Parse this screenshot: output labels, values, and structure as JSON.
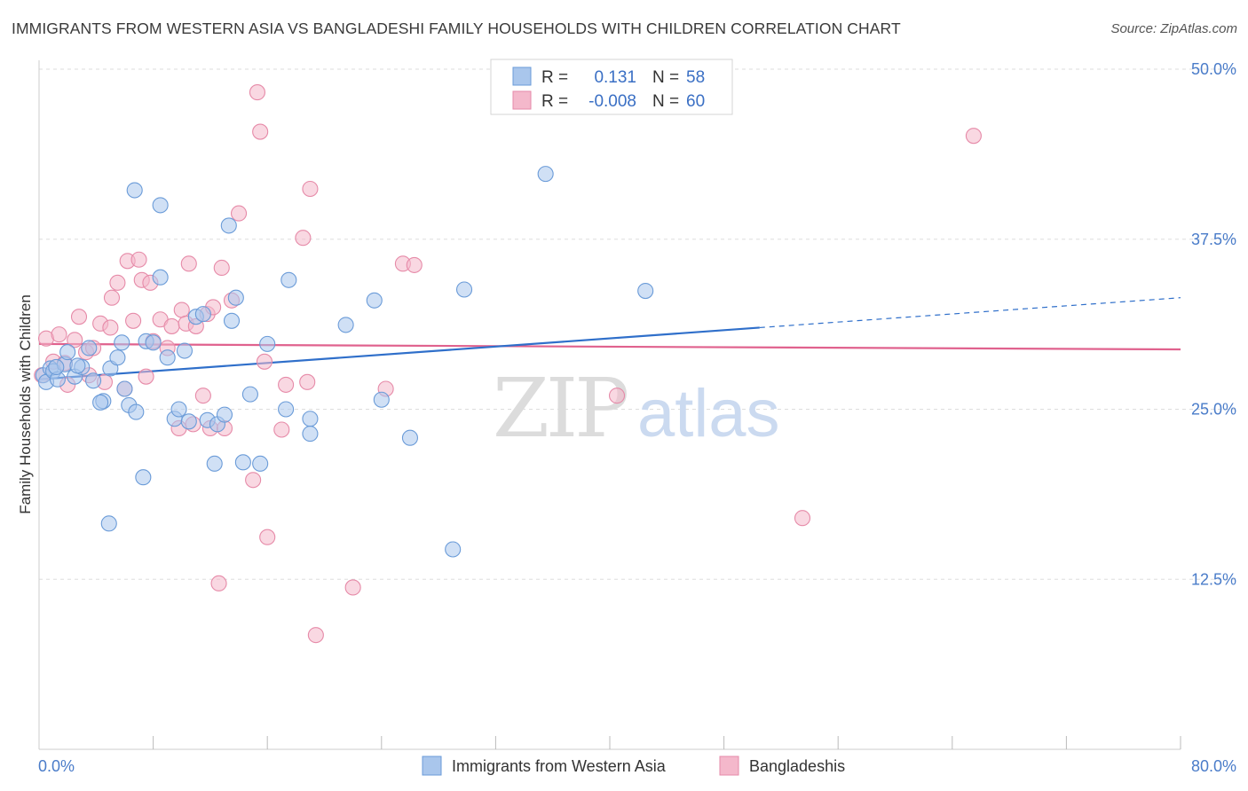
{
  "header": {
    "title": "IMMIGRANTS FROM WESTERN ASIA VS BANGLADESHI FAMILY HOUSEHOLDS WITH CHILDREN CORRELATION CHART",
    "source": "Source: ZipAtlas.com"
  },
  "watermark": {
    "zip": "ZIP",
    "atlas": "atlas"
  },
  "colors": {
    "blue_fill": "#a9c6ec",
    "blue_stroke": "#6a9bd8",
    "blue_line": "#2f6fca",
    "pink_fill": "#f4b8cb",
    "pink_stroke": "#e68aa8",
    "pink_line": "#e0628e",
    "tick_text": "#4a7cc9",
    "grid": "#dddddd"
  },
  "legend_box": {
    "rows": [
      {
        "r_label": "R =",
        "r_value": "0.131",
        "n_label": "N =",
        "n_value": "58",
        "series": "blue"
      },
      {
        "r_label": "R =",
        "r_value": "-0.008",
        "n_label": "N =",
        "n_value": "60",
        "series": "pink"
      }
    ]
  },
  "bottom_legend": [
    {
      "label": "Immigrants from Western Asia",
      "series": "blue"
    },
    {
      "label": "Bangladeshis",
      "series": "pink"
    }
  ],
  "chart_data": {
    "type": "scatter",
    "title": "IMMIGRANTS FROM WESTERN ASIA VS BANGLADESHI FAMILY HOUSEHOLDS WITH CHILDREN CORRELATION CHART",
    "xlabel": "",
    "ylabel": "Family Households with Children",
    "xlim": [
      0,
      80
    ],
    "ylim": [
      0,
      50
    ],
    "x_tick_labels": [
      {
        "value": 0,
        "label": "0.0%"
      },
      {
        "value": 80,
        "label": "80.0%"
      }
    ],
    "y_ticks": [
      {
        "value": 12.5,
        "label": "12.5%"
      },
      {
        "value": 25,
        "label": "25.0%"
      },
      {
        "value": 37.5,
        "label": "37.5%"
      },
      {
        "value": 50,
        "label": "50.0%"
      }
    ],
    "grid": true,
    "series": [
      {
        "name": "Immigrants from Western Asia",
        "color": "blue",
        "R": 0.131,
        "N": 58,
        "trend": {
          "x0": 0,
          "y0": 27.2,
          "x1": 50.5,
          "y1": 31.0,
          "dashed_to_x": 80,
          "dashed_to_y": 33.2
        },
        "points": [
          [
            0.3,
            27.5
          ],
          [
            0.5,
            27.0
          ],
          [
            0.8,
            28.0
          ],
          [
            1.0,
            27.8
          ],
          [
            1.3,
            27.2
          ],
          [
            1.8,
            28.3
          ],
          [
            2.0,
            29.2
          ],
          [
            2.5,
            27.4
          ],
          [
            3.0,
            28.1
          ],
          [
            3.5,
            29.5
          ],
          [
            3.8,
            27.1
          ],
          [
            4.5,
            25.6
          ],
          [
            5.0,
            28.0
          ],
          [
            5.5,
            28.8
          ],
          [
            6.0,
            26.5
          ],
          [
            6.3,
            25.3
          ],
          [
            6.8,
            24.8
          ],
          [
            7.5,
            30.0
          ],
          [
            8.5,
            34.7
          ],
          [
            9.0,
            28.8
          ],
          [
            4.3,
            25.5
          ],
          [
            4.9,
            16.6
          ],
          [
            5.8,
            29.9
          ],
          [
            8.0,
            29.9
          ],
          [
            9.5,
            24.3
          ],
          [
            9.8,
            25.0
          ],
          [
            10.2,
            29.3
          ],
          [
            10.5,
            24.1
          ],
          [
            11.0,
            31.8
          ],
          [
            11.5,
            32.0
          ],
          [
            11.8,
            24.2
          ],
          [
            12.3,
            21.0
          ],
          [
            12.5,
            23.9
          ],
          [
            13.0,
            24.6
          ],
          [
            13.5,
            31.5
          ],
          [
            13.8,
            33.2
          ],
          [
            14.3,
            21.1
          ],
          [
            14.8,
            26.1
          ],
          [
            15.5,
            21.0
          ],
          [
            16.0,
            29.8
          ],
          [
            17.3,
            25.0
          ],
          [
            17.5,
            34.5
          ],
          [
            19.0,
            24.3
          ],
          [
            19.0,
            23.2
          ],
          [
            21.5,
            31.2
          ],
          [
            23.5,
            33.0
          ],
          [
            24.0,
            25.7
          ],
          [
            26.0,
            22.9
          ],
          [
            29.0,
            14.7
          ],
          [
            29.8,
            33.8
          ],
          [
            35.5,
            42.3
          ],
          [
            42.5,
            33.7
          ],
          [
            6.7,
            41.1
          ],
          [
            8.5,
            40.0
          ],
          [
            13.3,
            38.5
          ],
          [
            7.3,
            20.0
          ],
          [
            1.2,
            28.1
          ],
          [
            2.7,
            28.2
          ]
        ]
      },
      {
        "name": "Bangladeshis",
        "color": "pink",
        "R": -0.008,
        "N": 60,
        "trend": {
          "x0": 0,
          "y0": 29.8,
          "x1": 80,
          "y1": 29.4
        },
        "points": [
          [
            0.2,
            27.5
          ],
          [
            0.5,
            30.2
          ],
          [
            1.0,
            28.5
          ],
          [
            1.4,
            30.5
          ],
          [
            1.8,
            28.4
          ],
          [
            2.0,
            26.8
          ],
          [
            2.5,
            30.1
          ],
          [
            2.8,
            31.8
          ],
          [
            3.3,
            29.2
          ],
          [
            3.5,
            27.5
          ],
          [
            3.8,
            29.5
          ],
          [
            4.3,
            31.3
          ],
          [
            4.6,
            27.0
          ],
          [
            5.0,
            31.0
          ],
          [
            5.1,
            33.2
          ],
          [
            5.5,
            34.3
          ],
          [
            6.0,
            26.5
          ],
          [
            6.2,
            35.9
          ],
          [
            6.6,
            31.5
          ],
          [
            7.0,
            36.0
          ],
          [
            7.2,
            34.5
          ],
          [
            7.5,
            27.4
          ],
          [
            7.8,
            34.3
          ],
          [
            8.0,
            30.0
          ],
          [
            8.5,
            31.6
          ],
          [
            9.0,
            29.5
          ],
          [
            9.3,
            31.1
          ],
          [
            9.8,
            23.6
          ],
          [
            10.0,
            32.3
          ],
          [
            10.3,
            31.3
          ],
          [
            10.5,
            35.7
          ],
          [
            10.8,
            23.9
          ],
          [
            11.0,
            31.1
          ],
          [
            11.5,
            26.0
          ],
          [
            11.8,
            32.0
          ],
          [
            12.0,
            23.6
          ],
          [
            12.2,
            32.5
          ],
          [
            12.8,
            35.4
          ],
          [
            13.0,
            23.6
          ],
          [
            13.5,
            33.0
          ],
          [
            14.0,
            39.4
          ],
          [
            15.0,
            19.8
          ],
          [
            15.3,
            48.3
          ],
          [
            15.5,
            45.4
          ],
          [
            15.8,
            28.5
          ],
          [
            16.0,
            15.6
          ],
          [
            17.0,
            23.5
          ],
          [
            17.3,
            26.8
          ],
          [
            18.5,
            37.6
          ],
          [
            18.8,
            27.0
          ],
          [
            19.0,
            41.2
          ],
          [
            19.4,
            8.4
          ],
          [
            22.0,
            11.9
          ],
          [
            24.3,
            26.5
          ],
          [
            25.5,
            35.7
          ],
          [
            26.3,
            35.6
          ],
          [
            12.6,
            12.2
          ],
          [
            40.5,
            26.0
          ],
          [
            53.5,
            17.0
          ],
          [
            65.5,
            45.1
          ]
        ]
      }
    ]
  }
}
